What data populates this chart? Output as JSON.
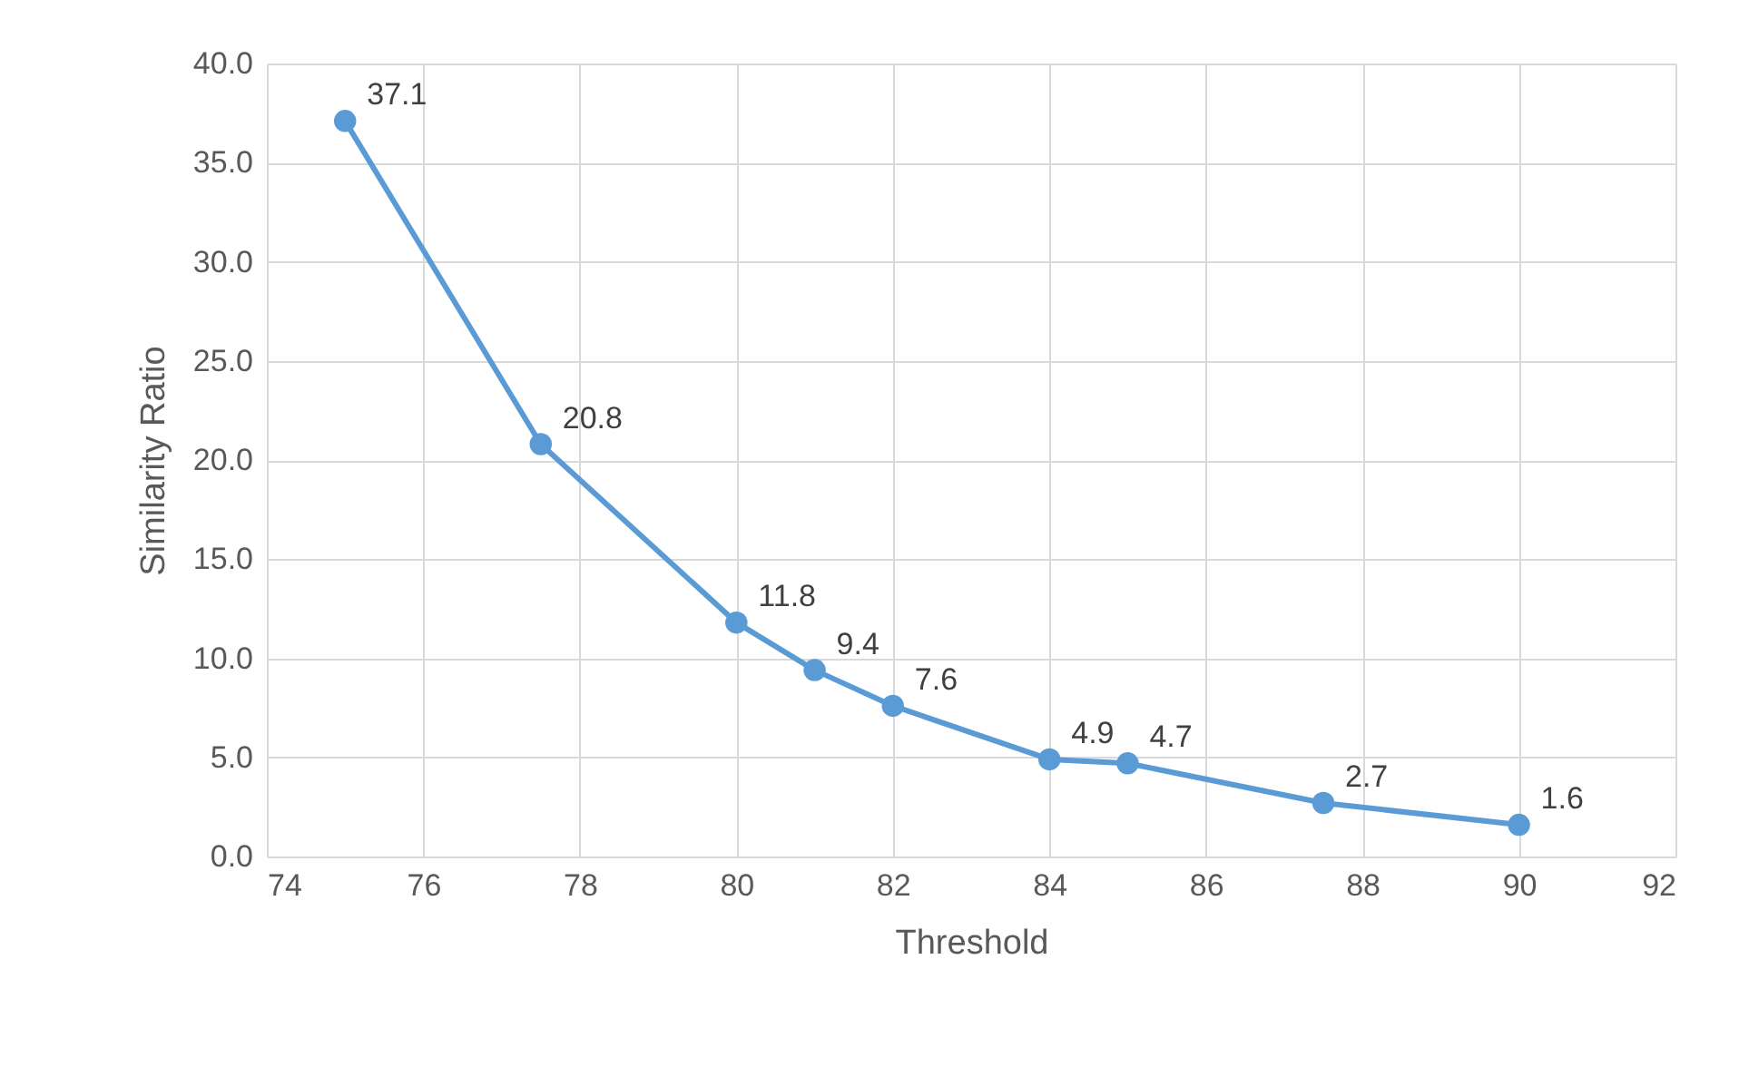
{
  "chart_data": {
    "type": "line",
    "xlabel": "Threshold",
    "ylabel": "Similarity Ratio",
    "x": [
      75,
      77.5,
      80,
      81,
      82,
      84,
      85,
      87.5,
      90
    ],
    "series": [
      {
        "color": "#5b9bd5",
        "values": [
          37.1,
          20.8,
          11.8,
          9.4,
          7.6,
          4.9,
          4.7,
          2.7,
          1.6
        ]
      }
    ],
    "xlim": [
      74,
      92
    ],
    "xticks": [
      74,
      76,
      78,
      80,
      82,
      84,
      86,
      88,
      90,
      92
    ],
    "ylim": [
      0,
      40
    ],
    "yticks": [
      {
        "value": 0,
        "label": "0.0"
      },
      {
        "value": 5,
        "label": "5.0"
      },
      {
        "value": 10,
        "label": "10.0"
      },
      {
        "value": 15,
        "label": "15.0"
      },
      {
        "value": 20,
        "label": "20.0"
      },
      {
        "value": 25,
        "label": "25.0"
      },
      {
        "value": 30,
        "label": "30.0"
      },
      {
        "value": 35,
        "label": "35.0"
      },
      {
        "value": 40,
        "label": "40.0"
      }
    ],
    "grid": true,
    "marker": "circle",
    "line_style": "solid",
    "data_labels": true
  }
}
